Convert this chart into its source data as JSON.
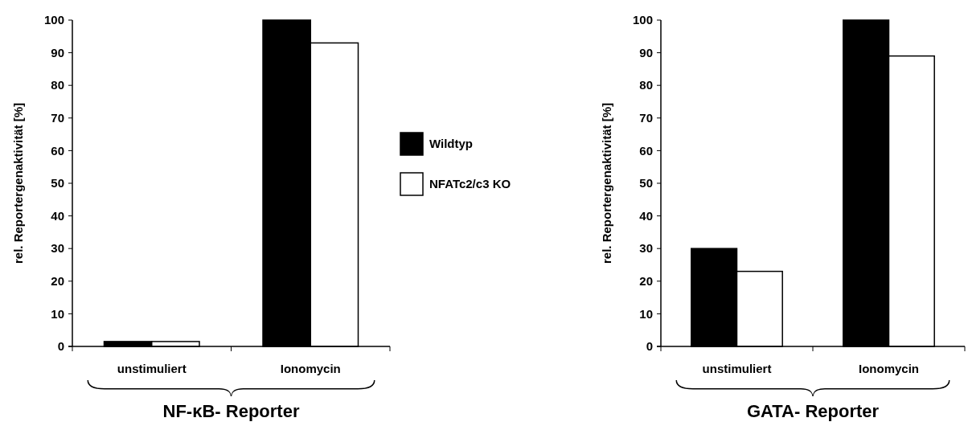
{
  "chart_data": [
    {
      "type": "bar",
      "categories": [
        "unstimuliert",
        "Ionomycin"
      ],
      "xlabel": "NF-κB- Reporter",
      "ylabel": "rel. Reportergenaktivität [%]",
      "ylim": [
        0,
        100
      ],
      "yticks": [
        0,
        10,
        20,
        30,
        40,
        50,
        60,
        70,
        80,
        90,
        100
      ],
      "grid": false,
      "legend": "right",
      "series": [
        {
          "name": "Wildtyp",
          "color": "#000000",
          "values": [
            1.5,
            100
          ]
        },
        {
          "name": "NFATc2/c3 KO",
          "color": "#ffffff",
          "values": [
            1.5,
            93
          ]
        }
      ]
    },
    {
      "type": "bar",
      "categories": [
        "unstimuliert",
        "Ionomycin"
      ],
      "xlabel": "GATA- Reporter",
      "ylabel": "rel. Reportergenaktivität [%]",
      "ylim": [
        0,
        100
      ],
      "yticks": [
        0,
        10,
        20,
        30,
        40,
        50,
        60,
        70,
        80,
        90,
        100
      ],
      "grid": false,
      "series": [
        {
          "color": "#000000",
          "values": [
            30,
            100
          ]
        },
        {
          "color": "#ffffff",
          "values": [
            23,
            89
          ]
        }
      ]
    }
  ]
}
